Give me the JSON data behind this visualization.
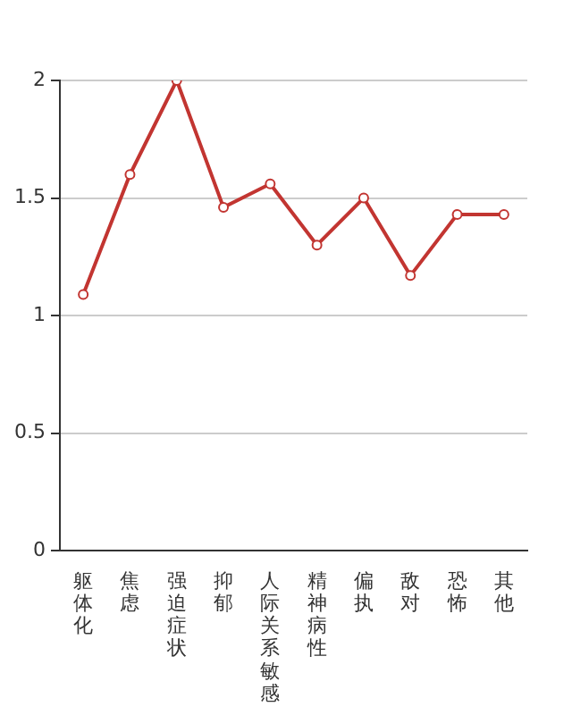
{
  "chart_data": {
    "type": "line",
    "categories": [
      "躯体化",
      "焦虑",
      "强迫症状",
      "抑郁",
      "人际关系敏感",
      "精神病性",
      "偏执",
      "敌对",
      "恐怖",
      "其他"
    ],
    "series": [
      {
        "color": "#c23531",
        "values": [
          1.09,
          1.6,
          2,
          1.46,
          1.56,
          1.3,
          1.5,
          1.17,
          1.43,
          1.43
        ]
      }
    ],
    "ylim": [
      0,
      2
    ],
    "yticks": [
      0,
      0.5,
      1,
      1.5,
      2
    ],
    "grid": "y",
    "marker": "circle",
    "line_style": "solid",
    "legend": false
  }
}
